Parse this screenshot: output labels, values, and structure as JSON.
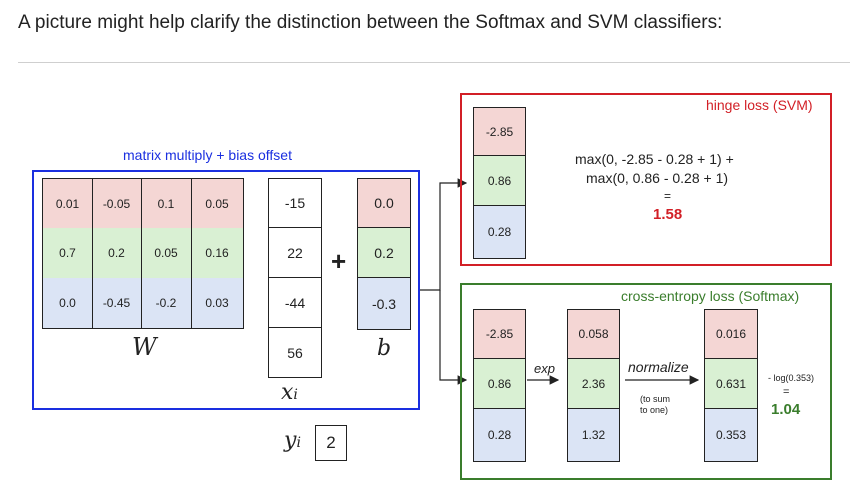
{
  "caption": "A picture might help clarify the distinction between the Softmax and SVM classifiers:",
  "colors": {
    "red_row": "#f4d6d4",
    "green_row": "#d9f0d3",
    "blue_row": "#dbe4f5",
    "blue_frame": "#1a2fe0",
    "red_frame": "#d21f26",
    "green_frame": "#3a7d2c"
  },
  "linear": {
    "title": "matrix multiply + bias offset",
    "W": [
      [
        "0.01",
        "-0.05",
        "0.1",
        "0.05"
      ],
      [
        "0.7",
        "0.2",
        "0.05",
        "0.16"
      ],
      [
        "0.0",
        "-0.45",
        "-0.2",
        "0.03"
      ]
    ],
    "W_label": "W",
    "x": [
      "-15",
      "22",
      "-44",
      "56"
    ],
    "x_label": "x",
    "x_sub": "i",
    "plus": "+",
    "b": [
      "0.0",
      "0.2",
      "-0.3"
    ],
    "b_label": "b",
    "y_label": "y",
    "y_sub": "i",
    "y_value": "2"
  },
  "scores": [
    "-2.85",
    "0.86",
    "0.28"
  ],
  "svm": {
    "title": "hinge loss (SVM)",
    "line1": "max(0, -2.85 - 0.28 + 1) +",
    "line2": "max(0, 0.86 - 0.28 + 1)",
    "eq": "=",
    "result": "1.58"
  },
  "softmax": {
    "title": "cross-entropy loss (Softmax)",
    "scores": [
      "-2.85",
      "0.86",
      "0.28"
    ],
    "exp_label": "exp",
    "exp_values": [
      "0.058",
      "2.36",
      "1.32"
    ],
    "normalize_label": "normalize",
    "normalize_note_1": "(to sum",
    "normalize_note_2": "to one)",
    "probs": [
      "0.016",
      "0.631",
      "0.353"
    ],
    "neglog": "- log(0.353)",
    "eq": "=",
    "result": "1.04"
  }
}
